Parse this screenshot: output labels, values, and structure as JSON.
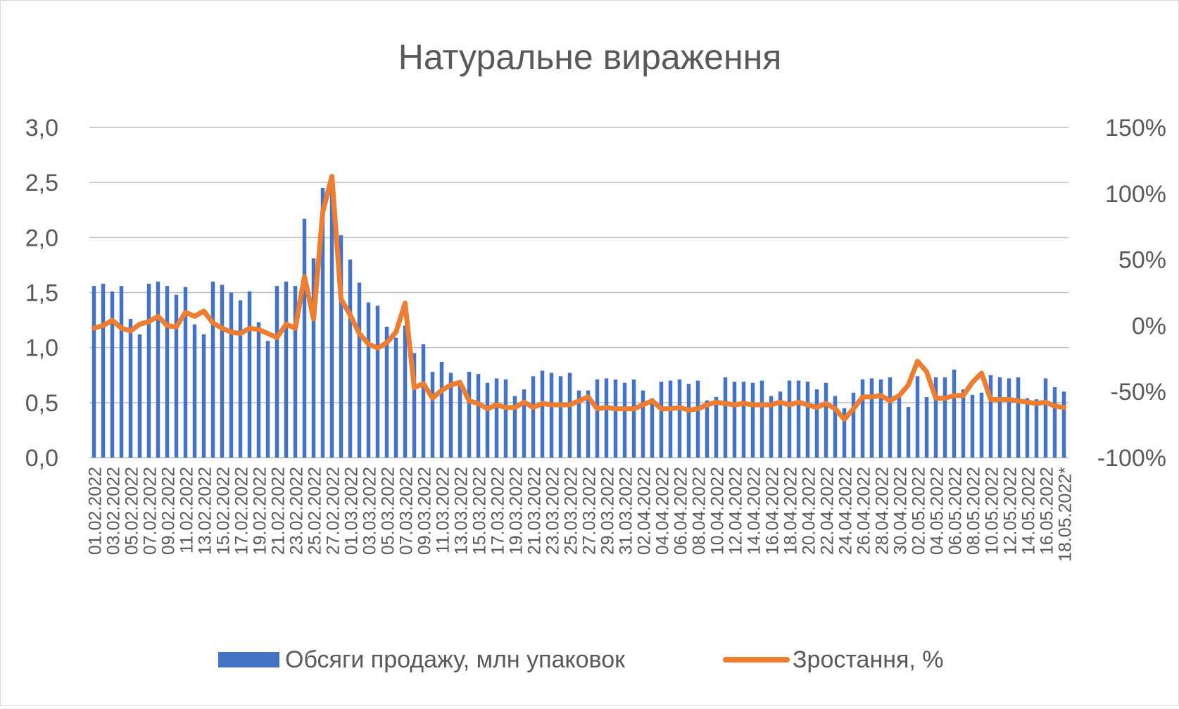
{
  "chart_data": {
    "type": "bar+line",
    "title": "Натуральне вираження",
    "categories": [
      "01.02.2022",
      "02.02.2022",
      "03.02.2022",
      "04.02.2022",
      "05.02.2022",
      "06.02.2022",
      "07.02.2022",
      "08.02.2022",
      "09.02.2022",
      "10.02.2022",
      "11.02.2022",
      "12.02.2022",
      "13.02.2022",
      "14.02.2022",
      "15.02.2022",
      "16.02.2022",
      "17.02.2022",
      "18.02.2022",
      "19.02.2022",
      "20.02.2022",
      "21.02.2022",
      "22.02.2022",
      "23.02.2022",
      "24.02.2022",
      "25.02.2022",
      "26.02.2022",
      "27.02.2022",
      "28.02.2022",
      "01.03.2022",
      "02.03.2022",
      "03.03.2022",
      "04.03.2022",
      "05.03.2022",
      "06.03.2022",
      "07.03.2022",
      "08.03.2022",
      "09.03.2022",
      "10.03.2022",
      "11.03.2022",
      "12.03.2022",
      "13.03.2022",
      "14.03.2022",
      "15.03.2022",
      "16.03.2022",
      "17.03.2022",
      "18.03.2022",
      "19.03.2022",
      "20.03.2022",
      "21.03.2022",
      "22.03.2022",
      "23.03.2022",
      "24.03.2022",
      "25.03.2022",
      "26.03.2022",
      "27.03.2022",
      "28.03.2022",
      "29.03.2022",
      "30.03.2022",
      "31.03.2022",
      "01.04.2022",
      "02.04.2022",
      "03.04.2022",
      "04.04.2022",
      "05.04.2022",
      "06.04.2022",
      "07.04.2022",
      "08.04.2022",
      "09.04.2022",
      "10.04.2022",
      "11.04.2022",
      "12.04.2022",
      "13.04.2022",
      "14.04.2022",
      "15.04.2022",
      "16.04.2022",
      "17.04.2022",
      "18.04.2022",
      "19.04.2022",
      "20.04.2022",
      "21.04.2022",
      "22.04.2022",
      "23.04.2022",
      "24.04.2022",
      "25.04.2022",
      "26.04.2022",
      "27.04.2022",
      "28.04.2022",
      "29.04.2022",
      "30.04.2022",
      "01.05.2022",
      "02.05.2022",
      "03.05.2022",
      "04.05.2022",
      "05.05.2022",
      "06.05.2022",
      "07.05.2022",
      "08.05.2022",
      "09.05.2022",
      "10.05.2022",
      "11.05.2022",
      "12.05.2022",
      "13.05.2022",
      "14.05.2022",
      "15.05.2022",
      "16.05.2022",
      "17.05.2022",
      "18.05.2022*"
    ],
    "tick_labels": [
      "01.02.2022",
      "03.02.2022",
      "05.02.2022",
      "07.02.2022",
      "09.02.2022",
      "11.02.2022",
      "13.02.2022",
      "15.02.2022",
      "17.02.2022",
      "19.02.2022",
      "21.02.2022",
      "23.02.2022",
      "25.02.2022",
      "27.02.2022",
      "01.03.2022",
      "03.03.2022",
      "05.03.2022",
      "07.03.2022",
      "09.03.2022",
      "11.03.2022",
      "13.03.2022",
      "15.03.2022",
      "17.03.2022",
      "19.03.2022",
      "21.03.2022",
      "23.03.2022",
      "25.03.2022",
      "27.03.2022",
      "29.03.2022",
      "31.03.2022",
      "02.04.2022",
      "04.04.2022",
      "06.04.2022",
      "08.04.2022",
      "10.04.2022",
      "12.04.2022",
      "14.04.2022",
      "16.04.2022",
      "18.04.2022",
      "20.04.2022",
      "22.04.2022",
      "24.04.2022",
      "26.04.2022",
      "28.04.2022",
      "30.04.2022",
      "02.05.2022",
      "04.05.2022",
      "06.05.2022",
      "08.05.2022",
      "10.05.2022",
      "12.05.2022",
      "14.05.2022",
      "16.05.2022",
      "18.05.2022*"
    ],
    "series": [
      {
        "name": "Обсяги продажу, млн упаковок",
        "type": "bar",
        "axis": "left",
        "color": "#4472C4",
        "values": [
          1.56,
          1.58,
          1.51,
          1.56,
          1.26,
          1.12,
          1.58,
          1.6,
          1.56,
          1.48,
          1.55,
          1.21,
          1.12,
          1.6,
          1.57,
          1.5,
          1.43,
          1.51,
          1.23,
          1.06,
          1.56,
          1.6,
          1.56,
          2.17,
          1.81,
          2.45,
          2.53,
          2.02,
          1.8,
          1.59,
          1.41,
          1.38,
          1.19,
          1.09,
          1.2,
          0.95,
          1.03,
          0.78,
          0.87,
          0.77,
          0.7,
          0.78,
          0.76,
          0.68,
          0.72,
          0.71,
          0.56,
          0.62,
          0.74,
          0.79,
          0.77,
          0.74,
          0.77,
          0.61,
          0.61,
          0.71,
          0.72,
          0.71,
          0.68,
          0.71,
          0.61,
          0.54,
          0.69,
          0.7,
          0.71,
          0.67,
          0.7,
          0.52,
          0.55,
          0.73,
          0.69,
          0.69,
          0.68,
          0.7,
          0.56,
          0.6,
          0.7,
          0.7,
          0.69,
          0.62,
          0.68,
          0.56,
          0.45,
          0.59,
          0.71,
          0.72,
          0.71,
          0.73,
          0.56,
          0.46,
          0.74,
          0.55,
          0.73,
          0.73,
          0.8,
          0.62,
          0.57,
          0.59,
          0.75,
          0.73,
          0.72,
          0.73,
          0.54,
          0.53,
          0.72,
          0.64,
          0.6
        ]
      },
      {
        "name": "Зростання, %",
        "type": "line",
        "axis": "right",
        "color": "#ED7D31",
        "values": [
          -2,
          0,
          4,
          -2,
          -4,
          1,
          3,
          7,
          0,
          -1,
          10,
          7,
          11,
          2,
          -2,
          -5,
          -6,
          -2,
          -3,
          -6,
          -9,
          1,
          -2,
          37,
          5,
          86,
          113,
          20,
          8,
          -6,
          -14,
          -17,
          -13,
          -5,
          17,
          -47,
          -44,
          -55,
          -49,
          -45,
          -43,
          -57,
          -59,
          -63,
          -60,
          -62,
          -62,
          -58,
          -62,
          -59,
          -60,
          -60,
          -60,
          -57,
          -54,
          -63,
          -62,
          -63,
          -63,
          -63,
          -60,
          -57,
          -63,
          -63,
          -62,
          -64,
          -63,
          -60,
          -58,
          -59,
          -60,
          -59,
          -60,
          -60,
          -60,
          -58,
          -60,
          -58,
          -60,
          -62,
          -59,
          -63,
          -71,
          -63,
          -54,
          -54,
          -53,
          -57,
          -53,
          -45,
          -27,
          -35,
          -55,
          -55,
          -53,
          -53,
          -43,
          -36,
          -56,
          -56,
          -56,
          -57,
          -58,
          -59,
          -58,
          -61,
          -62
        ]
      }
    ],
    "y_left": {
      "min": 0,
      "max": 3.0,
      "step": 0.5,
      "ticks": [
        "0,0",
        "0,5",
        "1,0",
        "1,5",
        "2,0",
        "2,5",
        "3,0"
      ]
    },
    "y_right": {
      "min": -100,
      "max": 150,
      "step": 50,
      "ticks": [
        "-100%",
        "-50%",
        "0%",
        "50%",
        "100%",
        "150%"
      ]
    },
    "gridlines": true,
    "legend_position": "bottom"
  },
  "legend": {
    "items": [
      {
        "label": "Обсяги продажу, млн упаковок",
        "kind": "bar",
        "color": "#4472C4"
      },
      {
        "label": "Зростання, %",
        "kind": "line",
        "color": "#ED7D31"
      }
    ]
  }
}
